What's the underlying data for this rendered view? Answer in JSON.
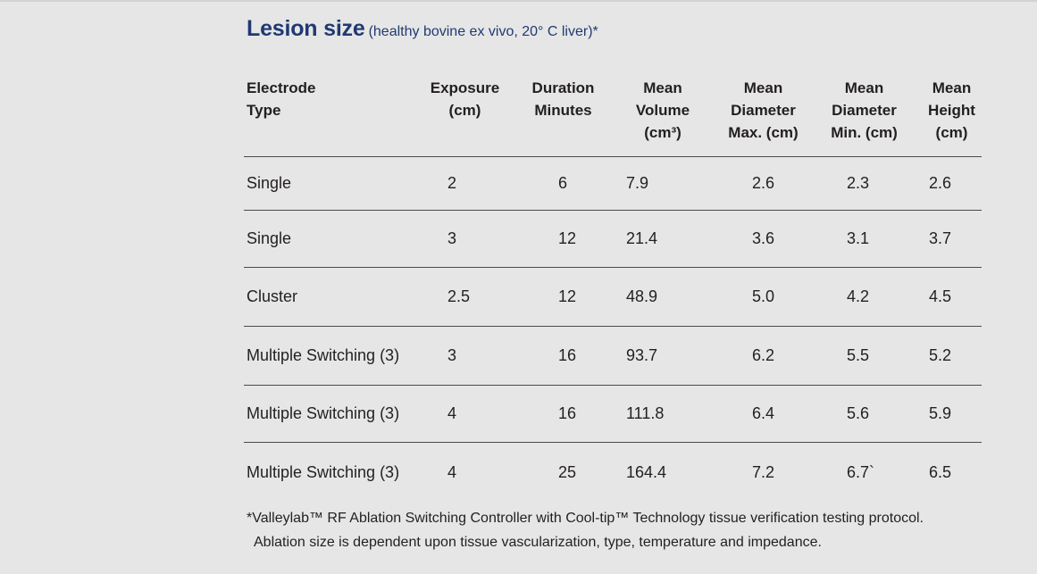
{
  "heading": {
    "title": "Lesion size",
    "subtitle": "(healthy bovine ex vivo, 20° C liver)*"
  },
  "table": {
    "headers": [
      "Electrode\nType",
      "Exposure\n(cm)",
      "Duration\nMinutes",
      "Mean\nVolume\n(cm³)",
      "Mean\nDiameter\nMax. (cm)",
      "Mean\nDiameter\nMin. (cm)",
      "Mean\nHeight\n(cm)"
    ],
    "rows": [
      [
        "Single",
        "2",
        "6",
        "7.9",
        "2.6",
        "2.3",
        "2.6"
      ],
      [
        "Single",
        "3",
        "12",
        "21.4",
        "3.6",
        "3.1",
        "3.7"
      ],
      [
        "Cluster",
        "2.5",
        "12",
        "48.9",
        "5.0",
        "4.2",
        "4.5"
      ],
      [
        "Multiple Switching (3)",
        "3",
        "16",
        "93.7",
        "6.2",
        "5.5",
        "5.2"
      ],
      [
        "Multiple Switching (3)",
        "4",
        "16",
        "111.8",
        "6.4",
        "5.6",
        "5.9"
      ],
      [
        "Multiple Switching (3)",
        "4",
        "25",
        "164.4",
        "7.2",
        "6.7`",
        "6.5"
      ]
    ]
  },
  "footnote": {
    "line1": "*Valleylab™ RF Ablation Switching Controller with Cool-tip™ Technology tissue verification testing protocol.",
    "line2": "Ablation size is dependent upon tissue vascularization, type, temperature and impedance."
  }
}
